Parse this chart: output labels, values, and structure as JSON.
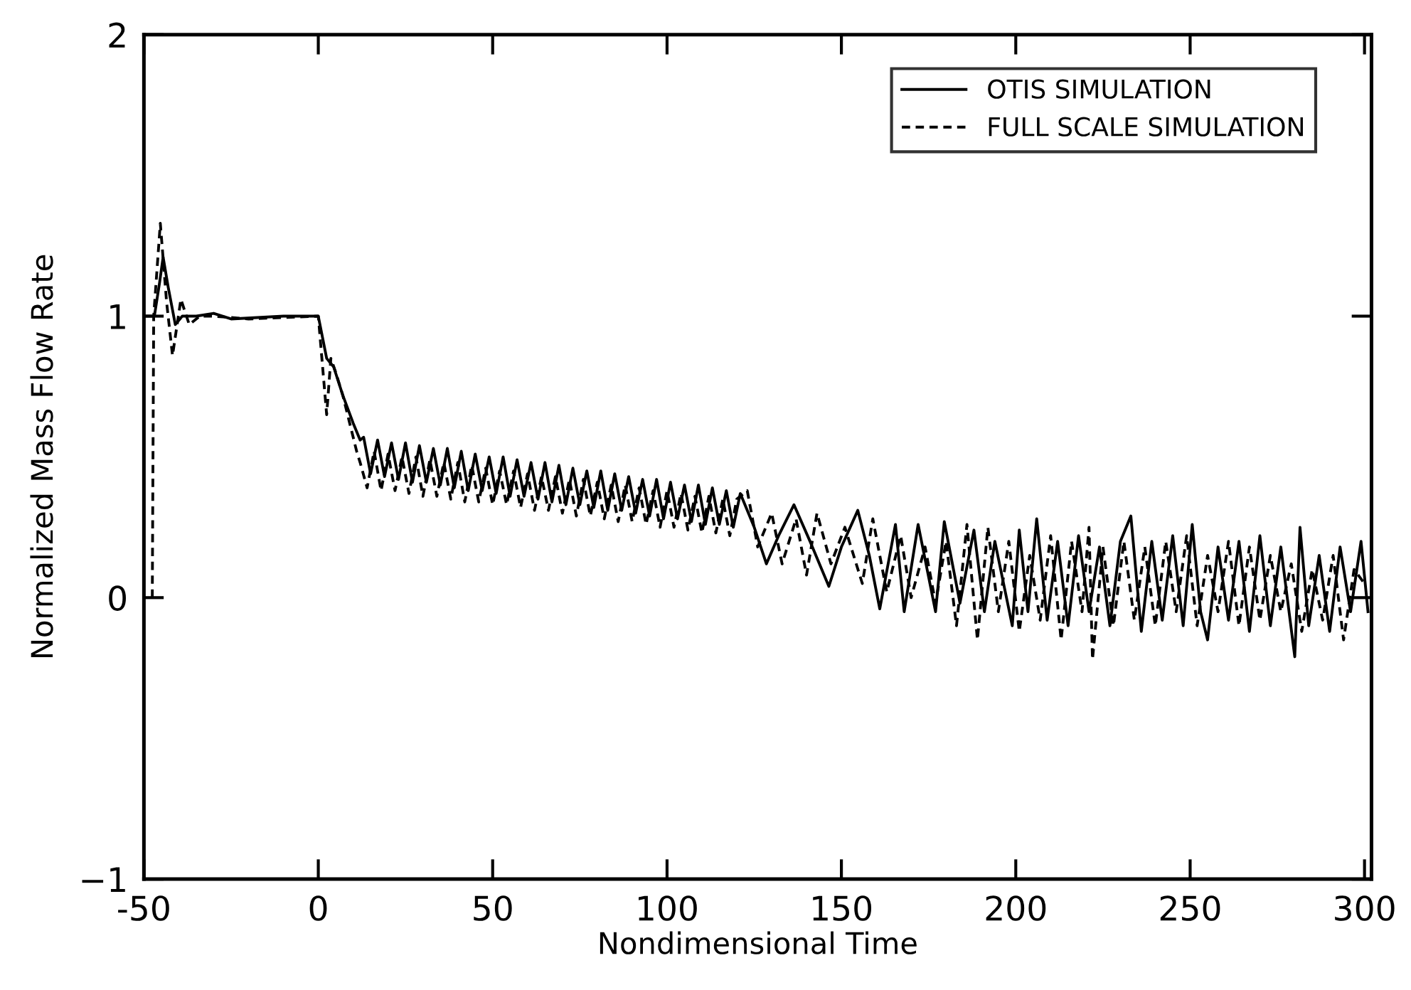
{
  "chart_data": {
    "type": "line",
    "xlabel": "Nondimensional Time",
    "ylabel": "Normalized Mass Flow Rate",
    "xlim": [
      -50,
      302
    ],
    "xticks": [
      -50,
      0,
      50,
      100,
      150,
      200,
      250,
      300
    ],
    "ylim": [
      -1,
      2
    ],
    "yticks": [
      {
        "value": -1,
        "label": "−1"
      },
      0,
      1,
      2
    ],
    "legend": "top right",
    "grid": false,
    "marker": "none",
    "series": [
      {
        "name": "OTIS SIMULATION",
        "color": "#000000",
        "line_style": "solid",
        "x": [
          -50,
          -47,
          -45.5,
          -44.5,
          -43,
          -41,
          -39,
          -35,
          -30,
          -25,
          -10,
          0,
          2.4,
          4.4,
          7,
          10,
          12,
          13,
          15,
          17,
          19,
          21,
          23,
          25,
          27,
          29,
          31,
          33,
          35,
          37,
          39,
          41,
          43,
          45,
          47,
          49,
          51,
          53,
          55,
          57,
          59,
          61,
          63,
          65,
          67,
          69,
          71,
          73,
          75,
          77,
          79,
          81,
          83,
          85,
          87,
          89,
          91,
          93,
          95,
          97,
          99,
          101,
          103,
          105,
          107,
          109,
          111,
          113,
          115,
          117,
          119,
          121,
          125,
          128.5,
          132,
          136.4,
          141,
          146.4,
          150,
          154.7,
          158,
          161,
          165.5,
          168,
          172,
          177,
          179.5,
          184,
          188,
          191,
          194,
          199,
          201,
          203.5,
          206,
          209,
          212,
          215,
          218,
          221,
          224,
          227,
          230,
          233,
          236,
          239,
          242,
          245,
          248,
          250.6,
          253,
          255,
          258,
          261,
          264,
          267,
          270,
          273,
          276,
          280,
          281.5,
          284,
          287,
          290,
          293,
          296,
          299,
          301
        ],
        "values": [
          1.0,
          1.0,
          1.12,
          1.21,
          1.1,
          0.97,
          1.0,
          1.0,
          1.01,
          0.99,
          1.0,
          1.0,
          0.85,
          0.82,
          0.72,
          0.62,
          0.56,
          0.57,
          0.44,
          0.56,
          0.43,
          0.55,
          0.42,
          0.55,
          0.41,
          0.54,
          0.41,
          0.53,
          0.4,
          0.53,
          0.39,
          0.52,
          0.38,
          0.51,
          0.38,
          0.5,
          0.37,
          0.5,
          0.36,
          0.49,
          0.36,
          0.48,
          0.35,
          0.48,
          0.34,
          0.47,
          0.33,
          0.46,
          0.33,
          0.45,
          0.32,
          0.45,
          0.31,
          0.44,
          0.31,
          0.43,
          0.3,
          0.42,
          0.29,
          0.42,
          0.28,
          0.41,
          0.28,
          0.4,
          0.27,
          0.4,
          0.26,
          0.39,
          0.26,
          0.38,
          0.25,
          0.37,
          0.25,
          0.12,
          0.22,
          0.33,
          0.2,
          0.04,
          0.18,
          0.31,
          0.15,
          -0.04,
          0.26,
          -0.05,
          0.26,
          -0.05,
          0.27,
          -0.02,
          0.24,
          -0.05,
          0.2,
          -0.1,
          0.24,
          -0.05,
          0.28,
          -0.08,
          0.2,
          -0.1,
          0.22,
          -0.05,
          0.18,
          -0.1,
          0.2,
          0.29,
          -0.12,
          0.2,
          -0.08,
          0.22,
          -0.1,
          0.26,
          -0.05,
          -0.15,
          0.18,
          -0.08,
          0.2,
          -0.12,
          0.22,
          -0.1,
          0.18,
          -0.21,
          0.25,
          -0.1,
          0.15,
          -0.12,
          0.18,
          -0.05,
          0.2,
          -0.05
        ]
      },
      {
        "name": "FULL SCALE SIMULATION",
        "color": "#000000",
        "line_style": "dashed",
        "x": [
          -47.6,
          -47.2,
          -45.3,
          -43.5,
          -41.8,
          -39.4,
          -37,
          -34,
          -30,
          -20,
          0,
          2.4,
          3.6,
          5,
          7,
          9,
          11,
          12,
          14,
          16,
          18,
          20,
          22,
          24,
          26,
          28,
          30,
          32,
          34,
          36,
          38,
          40,
          42,
          44,
          46,
          48,
          50,
          52,
          54,
          56,
          58,
          60,
          62,
          64,
          66,
          68,
          70,
          72,
          74,
          76,
          78,
          80,
          82,
          84,
          86,
          88,
          90,
          92,
          94,
          96,
          98,
          100,
          102,
          104,
          106,
          108,
          110,
          112,
          114,
          116,
          118,
          120,
          123,
          126,
          130,
          133,
          137,
          140,
          143,
          147,
          151,
          156,
          159,
          163,
          167,
          170,
          174,
          177,
          180,
          183,
          186,
          189,
          192,
          195,
          198,
          201,
          204,
          207,
          210,
          213,
          216,
          219,
          221,
          222,
          225,
          228,
          231,
          234,
          237,
          240,
          243,
          246,
          249,
          252,
          255,
          258,
          261,
          264,
          267,
          270,
          273,
          276,
          279,
          282,
          285,
          288,
          291,
          294,
          297,
          300
        ],
        "values": [
          0.0,
          1.0,
          1.33,
          1.05,
          0.86,
          1.06,
          0.97,
          1.0,
          1.0,
          0.99,
          1.0,
          0.65,
          0.85,
          0.8,
          0.72,
          0.62,
          0.52,
          0.48,
          0.39,
          0.52,
          0.38,
          0.51,
          0.38,
          0.5,
          0.37,
          0.5,
          0.36,
          0.49,
          0.36,
          0.48,
          0.35,
          0.48,
          0.34,
          0.47,
          0.34,
          0.46,
          0.33,
          0.45,
          0.33,
          0.45,
          0.32,
          0.44,
          0.31,
          0.43,
          0.31,
          0.43,
          0.3,
          0.42,
          0.29,
          0.42,
          0.29,
          0.41,
          0.28,
          0.4,
          0.27,
          0.4,
          0.27,
          0.39,
          0.26,
          0.38,
          0.25,
          0.38,
          0.25,
          0.37,
          0.24,
          0.36,
          0.23,
          0.36,
          0.23,
          0.35,
          0.22,
          0.35,
          0.38,
          0.18,
          0.3,
          0.12,
          0.28,
          0.08,
          0.3,
          0.12,
          0.25,
          0.05,
          0.28,
          0.02,
          0.22,
          0.0,
          0.18,
          -0.02,
          0.2,
          -0.1,
          0.26,
          -0.15,
          0.25,
          -0.05,
          0.2,
          -0.12,
          0.15,
          -0.08,
          0.22,
          -0.15,
          0.2,
          -0.05,
          0.25,
          -0.22,
          0.18,
          -0.1,
          0.2,
          -0.08,
          0.18,
          -0.1,
          0.2,
          -0.05,
          0.22,
          -0.1,
          0.15,
          -0.05,
          0.2,
          -0.1,
          0.18,
          -0.08,
          0.15,
          -0.05,
          0.12,
          -0.12,
          0.1,
          -0.08,
          0.15,
          -0.15,
          0.1,
          0.05
        ]
      }
    ]
  }
}
